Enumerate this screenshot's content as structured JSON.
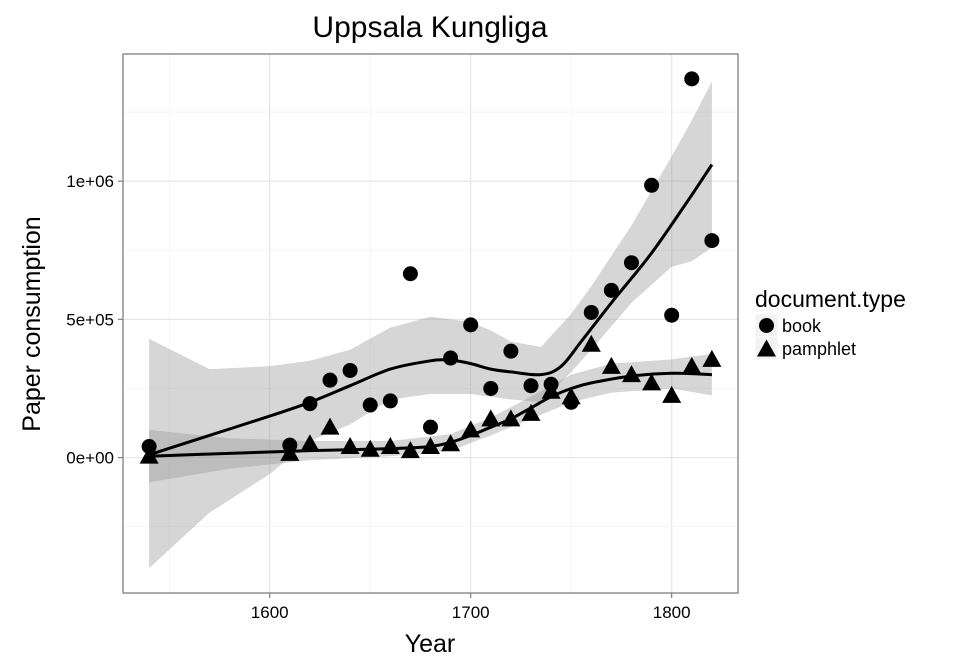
{
  "chart_data": {
    "type": "scatter",
    "title": "Uppsala Kungliga",
    "xlabel": "Year",
    "ylabel": "Paper consumption",
    "xlim": [
      1527,
      1833
    ],
    "ylim": [
      -490000,
      1460000
    ],
    "x_ticks": [
      {
        "value": 1600,
        "label": "1600"
      },
      {
        "value": 1700,
        "label": "1700"
      },
      {
        "value": 1800,
        "label": "1800"
      }
    ],
    "y_ticks": [
      {
        "value": 0,
        "label": "0e+00"
      },
      {
        "value": 500000,
        "label": "5e+05"
      },
      {
        "value": 1000000,
        "label": "1e+06"
      }
    ],
    "grid": true,
    "background": "#ffffff",
    "legend": {
      "title": "document.type",
      "placement": "right",
      "entries": [
        {
          "label": "book",
          "shape": "circle"
        },
        {
          "label": "pamphlet",
          "shape": "triangle"
        }
      ]
    },
    "series": [
      {
        "name": "book",
        "shape": "circle",
        "points": [
          [
            1540,
            40000
          ],
          [
            1610,
            45000
          ],
          [
            1620,
            195000
          ],
          [
            1630,
            280000
          ],
          [
            1640,
            315000
          ],
          [
            1650,
            190000
          ],
          [
            1660,
            205000
          ],
          [
            1670,
            665000
          ],
          [
            1680,
            110000
          ],
          [
            1690,
            360000
          ],
          [
            1700,
            480000
          ],
          [
            1710,
            250000
          ],
          [
            1720,
            385000
          ],
          [
            1730,
            260000
          ],
          [
            1740,
            265000
          ],
          [
            1750,
            200000
          ],
          [
            1760,
            525000
          ],
          [
            1770,
            605000
          ],
          [
            1780,
            705000
          ],
          [
            1790,
            985000
          ],
          [
            1800,
            515000
          ],
          [
            1810,
            1370000
          ],
          [
            1820,
            785000
          ]
        ],
        "smooth": [
          [
            1540,
            10000
          ],
          [
            1570,
            80000
          ],
          [
            1600,
            150000
          ],
          [
            1620,
            200000
          ],
          [
            1640,
            260000
          ],
          [
            1660,
            320000
          ],
          [
            1680,
            350000
          ],
          [
            1690,
            352000
          ],
          [
            1700,
            340000
          ],
          [
            1710,
            320000
          ],
          [
            1720,
            310000
          ],
          [
            1735,
            300000
          ],
          [
            1745,
            330000
          ],
          [
            1755,
            420000
          ],
          [
            1770,
            560000
          ],
          [
            1790,
            740000
          ],
          [
            1810,
            950000
          ],
          [
            1820,
            1060000
          ]
        ],
        "band": [
          [
            1540,
            -400000,
            430000
          ],
          [
            1570,
            -200000,
            320000
          ],
          [
            1600,
            -60000,
            330000
          ],
          [
            1620,
            60000,
            350000
          ],
          [
            1640,
            120000,
            390000
          ],
          [
            1660,
            210000,
            470000
          ],
          [
            1680,
            230000,
            510000
          ],
          [
            1700,
            230000,
            490000
          ],
          [
            1710,
            220000,
            460000
          ],
          [
            1720,
            210000,
            420000
          ],
          [
            1735,
            200000,
            400000
          ],
          [
            1750,
            310000,
            520000
          ],
          [
            1760,
            390000,
            620000
          ],
          [
            1780,
            560000,
            840000
          ],
          [
            1800,
            690000,
            1090000
          ],
          [
            1810,
            710000,
            1220000
          ],
          [
            1820,
            760000,
            1360000
          ]
        ]
      },
      {
        "name": "pamphlet",
        "shape": "triangle",
        "points": [
          [
            1540,
            5000
          ],
          [
            1610,
            15000
          ],
          [
            1620,
            50000
          ],
          [
            1630,
            110000
          ],
          [
            1640,
            40000
          ],
          [
            1650,
            30000
          ],
          [
            1660,
            40000
          ],
          [
            1670,
            25000
          ],
          [
            1680,
            40000
          ],
          [
            1690,
            50000
          ],
          [
            1700,
            100000
          ],
          [
            1710,
            140000
          ],
          [
            1720,
            140000
          ],
          [
            1730,
            160000
          ],
          [
            1740,
            240000
          ],
          [
            1750,
            220000
          ],
          [
            1760,
            410000
          ],
          [
            1770,
            330000
          ],
          [
            1780,
            300000
          ],
          [
            1790,
            270000
          ],
          [
            1800,
            225000
          ],
          [
            1810,
            330000
          ],
          [
            1820,
            355000
          ]
        ],
        "smooth": [
          [
            1540,
            5000
          ],
          [
            1580,
            15000
          ],
          [
            1620,
            25000
          ],
          [
            1660,
            32000
          ],
          [
            1680,
            40000
          ],
          [
            1690,
            55000
          ],
          [
            1700,
            80000
          ],
          [
            1710,
            110000
          ],
          [
            1720,
            140000
          ],
          [
            1730,
            180000
          ],
          [
            1740,
            220000
          ],
          [
            1750,
            250000
          ],
          [
            1760,
            270000
          ],
          [
            1780,
            295000
          ],
          [
            1800,
            305000
          ],
          [
            1820,
            300000
          ]
        ],
        "band": [
          [
            1540,
            -90000,
            100000
          ],
          [
            1580,
            -40000,
            70000
          ],
          [
            1620,
            -10000,
            60000
          ],
          [
            1660,
            5000,
            60000
          ],
          [
            1690,
            25000,
            85000
          ],
          [
            1710,
            80000,
            145000
          ],
          [
            1730,
            140000,
            220000
          ],
          [
            1750,
            200000,
            300000
          ],
          [
            1770,
            235000,
            340000
          ],
          [
            1800,
            250000,
            355000
          ],
          [
            1820,
            225000,
            375000
          ]
        ]
      }
    ]
  }
}
